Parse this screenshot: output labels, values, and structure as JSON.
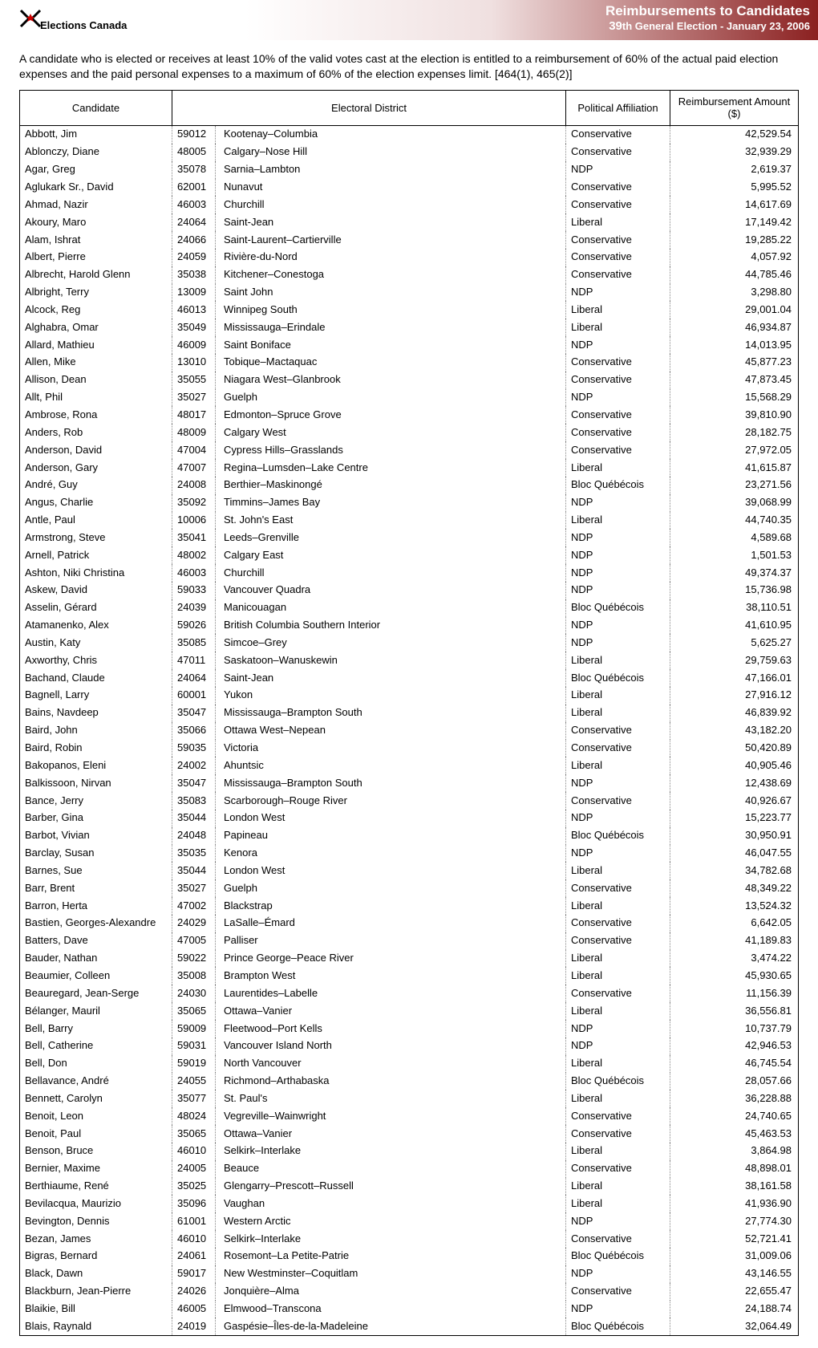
{
  "header": {
    "logo_text": "Elections Canada",
    "title": "Reimbursements to Candidates",
    "subtitle_num": "39",
    "subtitle_rest": "th General Election - January 23, 2006"
  },
  "intro_text": "A candidate who is elected or receives at least 10% of the valid votes cast at the election is entitled to a reimbursement of 60% of the actual paid election expenses and the paid personal expenses to a maximum of 60% of the election expenses limit. [464(1), 465(2)]",
  "columns": {
    "candidate": "Candidate",
    "district": "Electoral District",
    "party": "Political Affiliation",
    "amount_l1": "Reimbursement Amount",
    "amount_l2": "($)"
  },
  "rows": [
    {
      "c": "Abbott, Jim",
      "k": "59012",
      "d": "Kootenay–Columbia",
      "p": "Conservative",
      "a": "42,529.54"
    },
    {
      "c": "Ablonczy, Diane",
      "k": "48005",
      "d": "Calgary–Nose Hill",
      "p": "Conservative",
      "a": "32,939.29"
    },
    {
      "c": "Agar, Greg",
      "k": "35078",
      "d": "Sarnia–Lambton",
      "p": "NDP",
      "a": "2,619.37"
    },
    {
      "c": "Aglukark Sr., David",
      "k": "62001",
      "d": "Nunavut",
      "p": "Conservative",
      "a": "5,995.52"
    },
    {
      "c": "Ahmad, Nazir",
      "k": "46003",
      "d": "Churchill",
      "p": "Conservative",
      "a": "14,617.69"
    },
    {
      "c": "Akoury, Maro",
      "k": "24064",
      "d": "Saint-Jean",
      "p": "Liberal",
      "a": "17,149.42"
    },
    {
      "c": "Alam, Ishrat",
      "k": "24066",
      "d": "Saint-Laurent–Cartierville",
      "p": "Conservative",
      "a": "19,285.22"
    },
    {
      "c": "Albert, Pierre",
      "k": "24059",
      "d": "Rivière-du-Nord",
      "p": "Conservative",
      "a": "4,057.92"
    },
    {
      "c": "Albrecht, Harold Glenn",
      "k": "35038",
      "d": "Kitchener–Conestoga",
      "p": "Conservative",
      "a": "44,785.46"
    },
    {
      "c": "Albright, Terry",
      "k": "13009",
      "d": "Saint John",
      "p": "NDP",
      "a": "3,298.80"
    },
    {
      "c": "Alcock, Reg",
      "k": "46013",
      "d": "  Winnipeg South",
      "p": "Liberal",
      "a": "29,001.04"
    },
    {
      "c": "Alghabra, Omar",
      "k": "35049",
      "d": "Mississauga–Erindale",
      "p": "Liberal",
      "a": "46,934.87"
    },
    {
      "c": "Allard, Mathieu",
      "k": "46009",
      "d": "  Saint Boniface",
      "p": "NDP",
      "a": "14,013.95"
    },
    {
      "c": "Allen, Mike",
      "k": "13010",
      "d": "Tobique–Mactaquac",
      "p": "Conservative",
      "a": "45,877.23"
    },
    {
      "c": "Allison, Dean",
      "k": "35055",
      "d": "Niagara West–Glanbrook",
      "p": "Conservative",
      "a": "47,873.45"
    },
    {
      "c": "Allt, Phil",
      "k": "35027",
      "d": "Guelph",
      "p": "NDP",
      "a": "15,568.29"
    },
    {
      "c": "Ambrose, Rona",
      "k": "48017",
      "d": "Edmonton–Spruce Grove",
      "p": "Conservative",
      "a": "39,810.90"
    },
    {
      "c": "Anders, Rob",
      "k": "48009",
      "d": "  Calgary West",
      "p": "Conservative",
      "a": "28,182.75"
    },
    {
      "c": "Anderson, David",
      "k": "47004",
      "d": "Cypress Hills–Grasslands",
      "p": "Conservative",
      "a": "27,972.05"
    },
    {
      "c": "Anderson, Gary",
      "k": "47007",
      "d": "Regina–Lumsden–Lake Centre",
      "p": "Liberal",
      "a": "41,615.87"
    },
    {
      "c": "André, Guy",
      "k": "24008",
      "d": "Berthier–Maskinongé",
      "p": "Bloc Québécois",
      "a": "23,271.56"
    },
    {
      "c": "Angus, Charlie",
      "k": "35092",
      "d": "  Timmins–James Bay",
      "p": "NDP",
      "a": "39,068.99"
    },
    {
      "c": "Antle, Paul",
      "k": "10006",
      "d": "St. John's East",
      "p": "Liberal",
      "a": "44,740.35"
    },
    {
      "c": "Armstrong, Steve",
      "k": "35041",
      "d": "Leeds–Grenville",
      "p": "NDP",
      "a": "4,589.68"
    },
    {
      "c": "Arnell, Patrick",
      "k": "48002",
      "d": "  Calgary East",
      "p": "NDP",
      "a": "1,501.53"
    },
    {
      "c": "Ashton, Niki Christina",
      "k": "46003",
      "d": "Churchill",
      "p": "NDP",
      "a": "49,374.37"
    },
    {
      "c": "Askew, David",
      "k": "59033",
      "d": "Vancouver Quadra",
      "p": "NDP",
      "a": "15,736.98"
    },
    {
      "c": "Asselin, Gérard",
      "k": "24039",
      "d": "Manicouagan",
      "p": "Bloc Québécois",
      "a": "38,110.51"
    },
    {
      "c": "Atamanenko, Alex",
      "k": "59026",
      "d": "  British Columbia Southern Interior",
      "p": "NDP",
      "a": "41,610.95"
    },
    {
      "c": "Austin, Katy",
      "k": "35085",
      "d": "Simcoe–Grey",
      "p": "NDP",
      "a": "5,625.27"
    },
    {
      "c": "Axworthy, Chris",
      "k": "47011",
      "d": "Saskatoon–Wanuskewin",
      "p": "Liberal",
      "a": "29,759.63"
    },
    {
      "c": "Bachand, Claude",
      "k": "24064",
      "d": "Saint-Jean",
      "p": "Bloc Québécois",
      "a": "47,166.01"
    },
    {
      "c": "Bagnell, Larry",
      "k": "60001",
      "d": "Yukon",
      "p": "Liberal",
      "a": "27,916.12"
    },
    {
      "c": "Bains, Navdeep",
      "k": "35047",
      "d": "  Mississauga–Brampton South",
      "p": "Liberal",
      "a": "46,839.92"
    },
    {
      "c": "Baird, John",
      "k": "35066",
      "d": "  Ottawa West–Nepean",
      "p": "Conservative",
      "a": "43,182.20"
    },
    {
      "c": "Baird, Robin",
      "k": "59035",
      "d": "Victoria",
      "p": "Conservative",
      "a": "50,420.89"
    },
    {
      "c": "Bakopanos, Eleni",
      "k": "24002",
      "d": "Ahuntsic",
      "p": "Liberal",
      "a": "40,905.46"
    },
    {
      "c": "Balkissoon, Nirvan",
      "k": "35047",
      "d": "  Mississauga–Brampton South",
      "p": "NDP",
      "a": "12,438.69"
    },
    {
      "c": "Bance, Jerry",
      "k": "35083",
      "d": "Scarborough–Rouge River",
      "p": "Conservative",
      "a": "40,926.67"
    },
    {
      "c": "Barber, Gina",
      "k": "35044",
      "d": "  London West",
      "p": "NDP",
      "a": "15,223.77"
    },
    {
      "c": "Barbot, Vivian",
      "k": "24048",
      "d": "Papineau",
      "p": "Bloc Québécois",
      "a": "30,950.91"
    },
    {
      "c": "Barclay, Susan",
      "k": "35035",
      "d": "Kenora",
      "p": "NDP",
      "a": "46,047.55"
    },
    {
      "c": "Barnes, Sue",
      "k": "35044",
      "d": "  London West",
      "p": "Liberal",
      "a": "34,782.68"
    },
    {
      "c": "Barr, Brent",
      "k": "35027",
      "d": "Guelph",
      "p": "Conservative",
      "a": "48,349.22"
    },
    {
      "c": "Barron, Herta",
      "k": "47002",
      "d": "Blackstrap",
      "p": "Liberal",
      "a": "13,524.32"
    },
    {
      "c": "Bastien, Georges-Alexandre",
      "k": "24029",
      "d": "LaSalle–Émard",
      "p": "Conservative",
      "a": "6,642.05"
    },
    {
      "c": "Batters, Dave",
      "k": "47005",
      "d": "Palliser",
      "p": "Conservative",
      "a": "41,189.83"
    },
    {
      "c": "Bauder, Nathan",
      "k": "59022",
      "d": "Prince George–Peace River",
      "p": "Liberal",
      "a": "3,474.22"
    },
    {
      "c": "Beaumier, Colleen",
      "k": "35008",
      "d": "  Brampton West",
      "p": "Liberal",
      "a": "45,930.65"
    },
    {
      "c": "Beauregard, Jean-Serge",
      "k": "24030",
      "d": "Laurentides–Labelle",
      "p": "Conservative",
      "a": "11,156.39"
    },
    {
      "c": "Bélanger, Mauril",
      "k": "35065",
      "d": "Ottawa–Vanier",
      "p": "Liberal",
      "a": "36,556.81"
    },
    {
      "c": "Bell, Barry",
      "k": "59009",
      "d": "Fleetwood–Port Kells",
      "p": "NDP",
      "a": "10,737.79"
    },
    {
      "c": "Bell, Catherine",
      "k": "59031",
      "d": "Vancouver Island North",
      "p": "NDP",
      "a": "42,946.53"
    },
    {
      "c": "Bell, Don",
      "k": "59019",
      "d": "North Vancouver",
      "p": "Liberal",
      "a": "46,745.54"
    },
    {
      "c": "Bellavance, André",
      "k": "24055",
      "d": "Richmond–Arthabaska",
      "p": "Bloc Québécois",
      "a": "28,057.66"
    },
    {
      "c": "Bennett, Carolyn",
      "k": "35077",
      "d": "St. Paul's",
      "p": "Liberal",
      "a": "36,228.88"
    },
    {
      "c": "Benoit, Leon",
      "k": "48024",
      "d": "Vegreville–Wainwright",
      "p": "Conservative",
      "a": "24,740.65"
    },
    {
      "c": "Benoit, Paul",
      "k": "35065",
      "d": "Ottawa–Vanier",
      "p": "Conservative",
      "a": "45,463.53"
    },
    {
      "c": "Benson, Bruce",
      "k": "46010",
      "d": "Selkirk–Interlake",
      "p": "Liberal",
      "a": "3,864.98"
    },
    {
      "c": "Bernier, Maxime",
      "k": "24005",
      "d": "Beauce",
      "p": "Conservative",
      "a": "48,898.01"
    },
    {
      "c": "Berthiaume, René",
      "k": "35025",
      "d": "Glengarry–Prescott–Russell",
      "p": "Liberal",
      "a": "38,161.58"
    },
    {
      "c": "Bevilacqua, Maurizio",
      "k": "35096",
      "d": "Vaughan",
      "p": "Liberal",
      "a": "41,936.90"
    },
    {
      "c": "Bevington, Dennis",
      "k": "61001",
      "d": "Western Arctic",
      "p": "NDP",
      "a": "27,774.30"
    },
    {
      "c": "Bezan, James",
      "k": "46010",
      "d": "Selkirk–Interlake",
      "p": "Conservative",
      "a": "52,721.41"
    },
    {
      "c": "Bigras, Bernard",
      "k": "24061",
      "d": "Rosemont–La Petite-Patrie",
      "p": "Bloc Québécois",
      "a": "31,009.06"
    },
    {
      "c": "Black, Dawn",
      "k": "59017",
      "d": "New Westminster–Coquitlam",
      "p": "NDP",
      "a": "43,146.55"
    },
    {
      "c": "Blackburn, Jean-Pierre",
      "k": "24026",
      "d": "Jonquière–Alma",
      "p": "Conservative",
      "a": "22,655.47"
    },
    {
      "c": "Blaikie, Bill",
      "k": "46005",
      "d": "Elmwood–Transcona",
      "p": "NDP",
      "a": "24,188.74"
    },
    {
      "c": "Blais, Raynald",
      "k": "24019",
      "d": "Gaspésie–Îles-de-la-Madeleine",
      "p": "Bloc Québécois",
      "a": "32,064.49"
    }
  ],
  "style": {
    "body_font": "Arial",
    "body_fontsize_pt": 10,
    "header_bg_gradient_start": "#ffffff",
    "header_bg_gradient_end": "#8b2020",
    "header_text_color": "#ffffff",
    "border_color": "#000000",
    "dotted_border_color": "#888888"
  }
}
